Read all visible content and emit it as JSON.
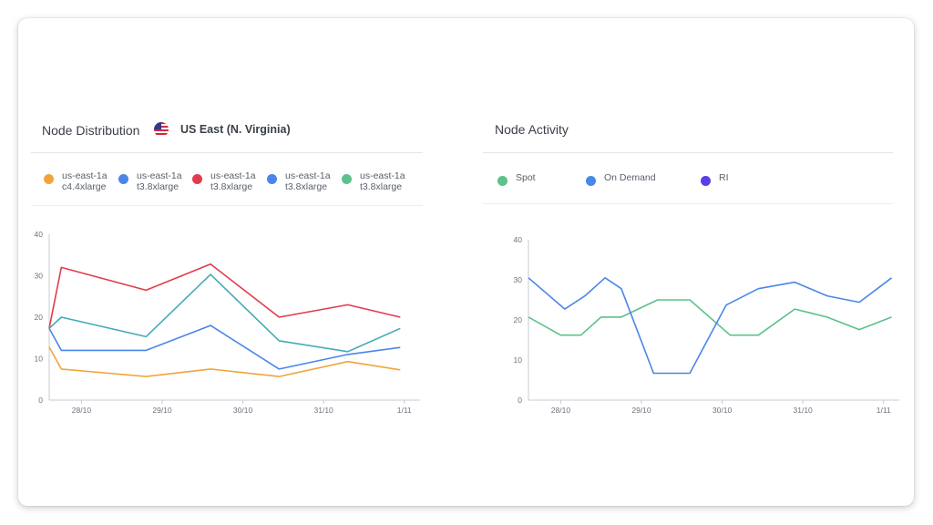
{
  "node_distribution": {
    "title": "Node Distribution",
    "region": "US East (N. Virginia)",
    "legend": [
      {
        "zone": "us-east-1a",
        "type": "c4.4xlarge",
        "color": "#f0a53c"
      },
      {
        "zone": "us-east-1a",
        "type": "t3.8xlarge",
        "color": "#4a86e8"
      },
      {
        "zone": "us-east-1a",
        "type": "t3.8xlarge",
        "color": "#e03c4c"
      },
      {
        "zone": "us-east-1a",
        "type": "t3.8xlarge",
        "color": "#4a86e8"
      },
      {
        "zone": "us-east-1a",
        "type": "t3.8xlarge",
        "color": "#5cc18a"
      }
    ]
  },
  "node_activity": {
    "title": "Node Activity",
    "legend": [
      {
        "label": "Spot",
        "color": "#5cc18a"
      },
      {
        "label": "On Demand",
        "color": "#4a86e8"
      },
      {
        "label": "RI",
        "color": "#5b3ee8"
      }
    ]
  },
  "chart_data": [
    {
      "type": "line",
      "name": "node-distribution",
      "x_tick_labels": [
        "28/10",
        "29/10",
        "30/10",
        "31/10",
        "1/11"
      ],
      "y_ticks": [
        0,
        10,
        20,
        30,
        40
      ],
      "ylim": [
        0,
        40
      ],
      "xlim": [
        27.6,
        32.15
      ],
      "grid": false,
      "x": [
        27.6,
        27.75,
        28.8,
        29.6,
        30.45,
        31.3,
        31.95
      ],
      "series": [
        {
          "color": "#f0a53c",
          "values": [
            12.8,
            7.5,
            5.7,
            7.5,
            5.7,
            9.3,
            7.3
          ]
        },
        {
          "color": "#4a86e8",
          "values": [
            17.3,
            12.0,
            12.0,
            18.0,
            7.5,
            11.0,
            12.7
          ]
        },
        {
          "color": "#e03c4c",
          "values": [
            17.3,
            32.0,
            26.5,
            32.8,
            20.0,
            23.0,
            20.0
          ]
        },
        {
          "color": "#45aab5",
          "values": [
            17.3,
            20.0,
            15.3,
            30.3,
            14.3,
            11.7,
            17.3
          ]
        }
      ]
    },
    {
      "type": "line",
      "name": "node-activity",
      "x_tick_labels": [
        "28/10",
        "29/10",
        "30/10",
        "31/10",
        "1/11"
      ],
      "y_ticks": [
        0,
        10,
        20,
        30,
        40
      ],
      "ylim": [
        0,
        40
      ],
      "xlim": [
        27.6,
        32.15
      ],
      "grid": false,
      "series": [
        {
          "name": "Spot",
          "color": "#5cc18a",
          "x": [
            27.6,
            28.0,
            28.25,
            28.5,
            28.75,
            29.2,
            29.6,
            30.1,
            30.45,
            30.9,
            31.3,
            31.7,
            32.1
          ],
          "values": [
            20.7,
            16.2,
            16.2,
            20.7,
            20.7,
            25.0,
            25.0,
            16.2,
            16.2,
            22.7,
            20.7,
            17.6,
            20.7
          ]
        },
        {
          "name": "On Demand",
          "color": "#4a86e8",
          "x": [
            27.6,
            28.05,
            28.3,
            28.55,
            28.75,
            29.15,
            29.6,
            30.05,
            30.45,
            30.9,
            31.3,
            31.7,
            32.1
          ],
          "values": [
            30.5,
            22.7,
            26.0,
            30.5,
            27.8,
            6.7,
            6.7,
            23.7,
            27.8,
            29.4,
            26.0,
            24.4,
            30.5
          ]
        }
      ]
    }
  ]
}
